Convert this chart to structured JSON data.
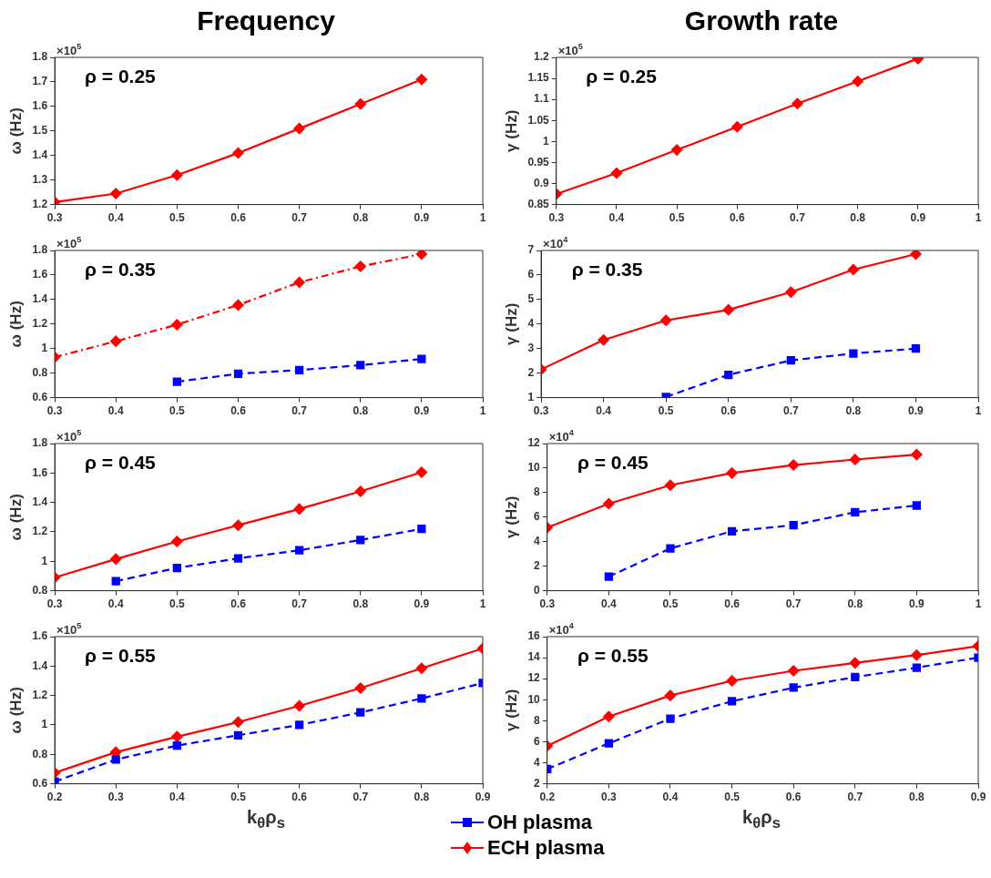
{
  "chart_data": [
    {
      "type": "line",
      "title": "Frequency",
      "ylabel": "ω (Hz)",
      "xlim": [
        0.3,
        1
      ],
      "xticks": [
        0.3,
        0.4,
        0.5,
        0.6,
        0.7,
        0.8,
        0.9,
        1
      ],
      "ylim": [
        1.2,
        1.8
      ],
      "yticks": [
        1.2,
        1.3,
        1.4,
        1.5,
        1.6,
        1.7,
        1.8
      ],
      "annotations": [
        "×10$^{5}$",
        "ρ = 0.25"
      ],
      "series": [
        {
          "color": "#ff0000",
          "marker": "diamond",
          "line_style": "solid",
          "x": [
            0.3,
            0.4,
            0.5,
            0.6,
            0.7,
            0.8,
            0.9
          ],
          "values": [
            1.21,
            1.245,
            1.32,
            1.41,
            1.51,
            1.61,
            1.71
          ]
        }
      ]
    },
    {
      "type": "line",
      "title": "Growth rate",
      "ylabel": "γ (Hz)",
      "xlim": [
        0.3,
        1
      ],
      "xticks": [
        0.3,
        0.4,
        0.5,
        0.6,
        0.7,
        0.8,
        0.9,
        1
      ],
      "ylim": [
        0.85,
        1.2
      ],
      "yticks": [
        0.85,
        0.9,
        0.95,
        1,
        1.05,
        1.1,
        1.15,
        1.2
      ],
      "annotations": [
        "×10$^{5}$",
        "ρ = 0.25"
      ],
      "series": [
        {
          "color": "#ff0000",
          "marker": "diamond",
          "line_style": "solid",
          "x": [
            0.3,
            0.4,
            0.5,
            0.6,
            0.7,
            0.8,
            0.9
          ],
          "values": [
            0.875,
            0.925,
            0.98,
            1.035,
            1.09,
            1.143,
            1.197
          ]
        }
      ]
    },
    {
      "type": "line",
      "ylabel": "ω (Hz)",
      "xlim": [
        0.3,
        1
      ],
      "xticks": [
        0.3,
        0.4,
        0.5,
        0.6,
        0.7,
        0.8,
        0.9,
        1
      ],
      "ylim": [
        0.6,
        1.8
      ],
      "yticks": [
        0.6,
        0.8,
        1,
        1.2,
        1.4,
        1.6,
        1.8
      ],
      "annotations": [
        "×10$^{5}$",
        "ρ = 0.35"
      ],
      "series": [
        {
          "color": "#0000ff",
          "marker": "square",
          "line_style": "dashed",
          "x": [
            0.5,
            0.6,
            0.7,
            0.8,
            0.9
          ],
          "values": [
            0.73,
            0.795,
            0.825,
            0.865,
            0.915
          ]
        },
        {
          "color": "#ff0000",
          "marker": "diamond",
          "line_style": "dashdot",
          "x": [
            0.3,
            0.4,
            0.5,
            0.6,
            0.7,
            0.8,
            0.9
          ],
          "values": [
            0.93,
            1.06,
            1.195,
            1.355,
            1.54,
            1.67,
            1.77
          ]
        }
      ]
    },
    {
      "type": "line",
      "ylabel": "γ (Hz)",
      "xlim": [
        0.3,
        1
      ],
      "xticks": [
        0.3,
        0.4,
        0.5,
        0.6,
        0.7,
        0.8,
        0.9,
        1
      ],
      "ylim": [
        1,
        7
      ],
      "yticks": [
        1,
        2,
        3,
        4,
        5,
        6,
        7
      ],
      "annotations": [
        "×10$^{4}$",
        "ρ = 0.35"
      ],
      "series": [
        {
          "color": "#0000ff",
          "marker": "square",
          "line_style": "dashed",
          "x": [
            0.5,
            0.6,
            0.7,
            0.8,
            0.9
          ],
          "values": [
            1.03,
            1.93,
            2.52,
            2.8,
            3.0
          ]
        },
        {
          "color": "#ff0000",
          "marker": "diamond",
          "line_style": "solid",
          "x": [
            0.3,
            0.4,
            0.5,
            0.6,
            0.7,
            0.8,
            0.9
          ],
          "values": [
            2.15,
            3.35,
            4.15,
            4.58,
            5.3,
            6.22,
            6.85
          ]
        }
      ]
    },
    {
      "type": "line",
      "ylabel": "ω (Hz)",
      "xlim": [
        0.3,
        1
      ],
      "xticks": [
        0.3,
        0.4,
        0.5,
        0.6,
        0.7,
        0.8,
        0.9,
        1
      ],
      "ylim": [
        0.8,
        1.8
      ],
      "yticks": [
        0.8,
        1,
        1.2,
        1.4,
        1.6,
        1.8
      ],
      "annotations": [
        "×10$^{5}$",
        "ρ = 0.45"
      ],
      "series": [
        {
          "color": "#0000ff",
          "marker": "square",
          "line_style": "dashed",
          "x": [
            0.4,
            0.5,
            0.6,
            0.7,
            0.8,
            0.9
          ],
          "values": [
            0.865,
            0.955,
            1.02,
            1.075,
            1.145,
            1.22
          ]
        },
        {
          "color": "#ff0000",
          "marker": "diamond",
          "line_style": "solid",
          "x": [
            0.3,
            0.4,
            0.5,
            0.6,
            0.7,
            0.8,
            0.9
          ],
          "values": [
            0.89,
            1.015,
            1.135,
            1.245,
            1.355,
            1.475,
            1.605
          ]
        }
      ]
    },
    {
      "type": "line",
      "ylabel": "γ (Hz)",
      "xlim": [
        0.3,
        1
      ],
      "xticks": [
        0.3,
        0.4,
        0.5,
        0.6,
        0.7,
        0.8,
        0.9,
        1
      ],
      "ylim": [
        0,
        12
      ],
      "yticks": [
        0,
        2,
        4,
        6,
        8,
        10,
        12
      ],
      "annotations": [
        "×10$^{4}$",
        "ρ = 0.45"
      ],
      "series": [
        {
          "color": "#0000ff",
          "marker": "square",
          "line_style": "dashed",
          "x": [
            0.4,
            0.5,
            0.6,
            0.7,
            0.8,
            0.9
          ],
          "values": [
            1.15,
            3.45,
            4.85,
            5.35,
            6.4,
            6.95
          ]
        },
        {
          "color": "#ff0000",
          "marker": "diamond",
          "line_style": "solid",
          "x": [
            0.3,
            0.4,
            0.5,
            0.6,
            0.7,
            0.8,
            0.9
          ],
          "values": [
            5.15,
            7.1,
            8.6,
            9.6,
            10.25,
            10.7,
            11.1
          ]
        }
      ]
    },
    {
      "type": "line",
      "xlabel": "k$_{θ}$ρ$_{s}$",
      "ylabel": "ω (Hz)",
      "xlim": [
        0.2,
        0.9
      ],
      "xticks": [
        0.2,
        0.3,
        0.4,
        0.5,
        0.6,
        0.7,
        0.8,
        0.9
      ],
      "ylim": [
        0.6,
        1.6
      ],
      "yticks": [
        0.6,
        0.8,
        1,
        1.2,
        1.4,
        1.6
      ],
      "annotations": [
        "×10$^{5}$",
        "ρ = 0.55"
      ],
      "legend": "bottom right",
      "series": [
        {
          "name": "OH plasma",
          "color": "#0000ff",
          "marker": "square",
          "line_style": "dashed",
          "x": [
            0.2,
            0.3,
            0.4,
            0.5,
            0.6,
            0.7,
            0.8,
            0.9
          ],
          "values": [
            0.615,
            0.765,
            0.86,
            0.93,
            1.0,
            1.085,
            1.18,
            1.285
          ]
        },
        {
          "name": "ECH plasma",
          "color": "#ff0000",
          "marker": "diamond",
          "line_style": "solid",
          "x": [
            0.2,
            0.3,
            0.4,
            0.5,
            0.6,
            0.7,
            0.8,
            0.9
          ],
          "values": [
            0.675,
            0.815,
            0.92,
            1.02,
            1.13,
            1.25,
            1.385,
            1.52
          ]
        }
      ]
    },
    {
      "type": "line",
      "xlabel": "k$_{θ}$ρ$_{s}$",
      "ylabel": "γ (Hz)",
      "xlim": [
        0.2,
        0.9
      ],
      "xticks": [
        0.2,
        0.3,
        0.4,
        0.5,
        0.6,
        0.7,
        0.8,
        0.9
      ],
      "ylim": [
        2,
        16
      ],
      "yticks": [
        2,
        4,
        6,
        8,
        10,
        12,
        14,
        16
      ],
      "annotations": [
        "×10$^{4}$",
        "ρ = 0.55"
      ],
      "series": [
        {
          "color": "#0000ff",
          "marker": "square",
          "line_style": "dashed",
          "x": [
            0.2,
            0.3,
            0.4,
            0.5,
            0.6,
            0.7,
            0.8,
            0.9
          ],
          "values": [
            3.4,
            5.85,
            8.2,
            9.85,
            11.15,
            12.15,
            13.05,
            14.0
          ]
        },
        {
          "color": "#ff0000",
          "marker": "diamond",
          "line_style": "solid",
          "x": [
            0.2,
            0.3,
            0.4,
            0.5,
            0.6,
            0.7,
            0.8,
            0.9
          ],
          "values": [
            5.6,
            8.4,
            10.4,
            11.8,
            12.75,
            13.5,
            14.25,
            15.1
          ]
        }
      ]
    }
  ]
}
